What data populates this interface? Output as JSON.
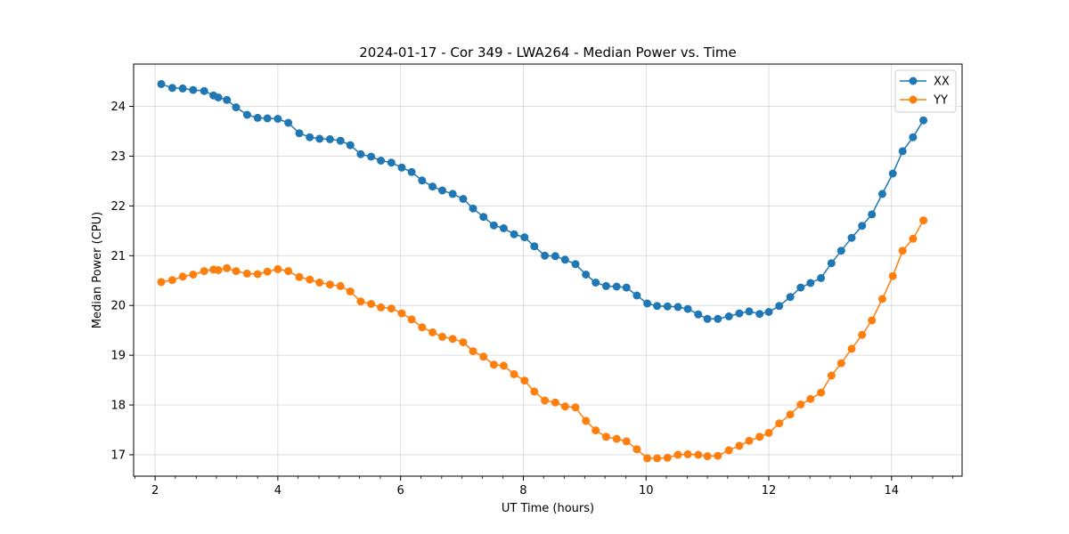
{
  "chart_data": {
    "type": "line",
    "title": "2024-01-17 - Cor 349 - LWA264 - Median Power vs. Time",
    "xlabel": "UT Time (hours)",
    "ylabel": "Median Power (CPU)",
    "xlim": [
      1.65,
      15.15
    ],
    "ylim": [
      16.57,
      24.85
    ],
    "grid": true,
    "legend_position": "upper right",
    "x_major_ticks": [
      2,
      4,
      6,
      8,
      10,
      12,
      14
    ],
    "x_tick_labels": [
      "2",
      "4",
      "6",
      "8",
      "10",
      "12",
      "14"
    ],
    "x_minor_ticks": [
      1.67,
      2.33,
      2.67,
      3.0,
      3.33,
      3.67,
      4.33,
      4.67,
      5.0,
      5.33,
      5.67,
      6.33,
      6.67,
      7.0,
      7.33,
      7.67,
      8.33,
      8.67,
      9.0,
      9.33,
      9.67,
      10.33,
      10.67,
      11.0,
      11.33,
      11.67,
      12.33,
      12.67,
      13.0,
      13.33,
      13.67,
      14.33,
      14.67,
      15.0
    ],
    "y_ticks": [
      17,
      18,
      19,
      20,
      21,
      22,
      23,
      24
    ],
    "y_tick_labels": [
      "17",
      "18",
      "19",
      "20",
      "21",
      "22",
      "23",
      "24"
    ],
    "x": [
      2.1,
      2.28,
      2.45,
      2.62,
      2.8,
      2.95,
      3.03,
      3.17,
      3.32,
      3.5,
      3.67,
      3.83,
      4.0,
      4.17,
      4.35,
      4.52,
      4.68,
      4.85,
      5.02,
      5.18,
      5.35,
      5.52,
      5.68,
      5.85,
      6.02,
      6.18,
      6.35,
      6.52,
      6.68,
      6.85,
      7.02,
      7.18,
      7.35,
      7.52,
      7.68,
      7.85,
      8.02,
      8.18,
      8.35,
      8.52,
      8.68,
      8.85,
      9.02,
      9.18,
      9.35,
      9.52,
      9.68,
      9.85,
      10.02,
      10.18,
      10.35,
      10.52,
      10.68,
      10.85,
      11.0,
      11.17,
      11.35,
      11.52,
      11.68,
      11.85,
      12.0,
      12.17,
      12.35,
      12.52,
      12.68,
      12.85,
      13.02,
      13.18,
      13.35,
      13.52,
      13.68,
      13.85,
      14.02,
      14.18,
      14.35,
      14.52
    ],
    "series": [
      {
        "name": "XX",
        "color": "#1f77b4",
        "values": [
          24.45,
          24.37,
          24.36,
          24.33,
          24.31,
          24.22,
          24.18,
          24.13,
          23.98,
          23.83,
          23.77,
          23.76,
          23.75,
          23.67,
          23.46,
          23.38,
          23.35,
          23.34,
          23.31,
          23.22,
          23.04,
          22.99,
          22.91,
          22.87,
          22.77,
          22.68,
          22.51,
          22.39,
          22.31,
          22.24,
          22.14,
          21.95,
          21.78,
          21.61,
          21.55,
          21.43,
          21.37,
          21.19,
          21.0,
          20.99,
          20.92,
          20.83,
          20.62,
          20.46,
          20.39,
          20.38,
          20.36,
          20.2,
          20.04,
          19.99,
          19.98,
          19.97,
          19.93,
          19.82,
          19.73,
          19.73,
          19.78,
          19.84,
          19.88,
          19.83,
          19.87,
          19.99,
          20.17,
          20.36,
          20.45,
          20.55,
          20.85,
          21.1,
          21.36,
          21.6,
          21.83,
          22.24,
          22.65,
          23.1,
          23.38,
          23.72
        ]
      },
      {
        "name": "YY",
        "color": "#ff7f0e",
        "values": [
          20.47,
          20.51,
          20.58,
          20.62,
          20.69,
          20.72,
          20.71,
          20.75,
          20.69,
          20.64,
          20.63,
          20.68,
          20.73,
          20.69,
          20.57,
          20.52,
          20.46,
          20.42,
          20.39,
          20.28,
          20.08,
          20.03,
          19.96,
          19.94,
          19.84,
          19.72,
          19.56,
          19.46,
          19.37,
          19.33,
          19.26,
          19.08,
          18.97,
          18.81,
          18.79,
          18.62,
          18.49,
          18.27,
          18.09,
          18.05,
          17.97,
          17.95,
          17.68,
          17.49,
          17.36,
          17.32,
          17.27,
          17.11,
          16.93,
          16.93,
          16.94,
          17.0,
          17.01,
          17.0,
          16.97,
          16.98,
          17.09,
          17.18,
          17.28,
          17.36,
          17.44,
          17.63,
          17.81,
          18.01,
          18.12,
          18.25,
          18.59,
          18.84,
          19.13,
          19.41,
          19.7,
          20.13,
          20.59,
          21.1,
          21.34,
          21.71
        ]
      }
    ]
  }
}
